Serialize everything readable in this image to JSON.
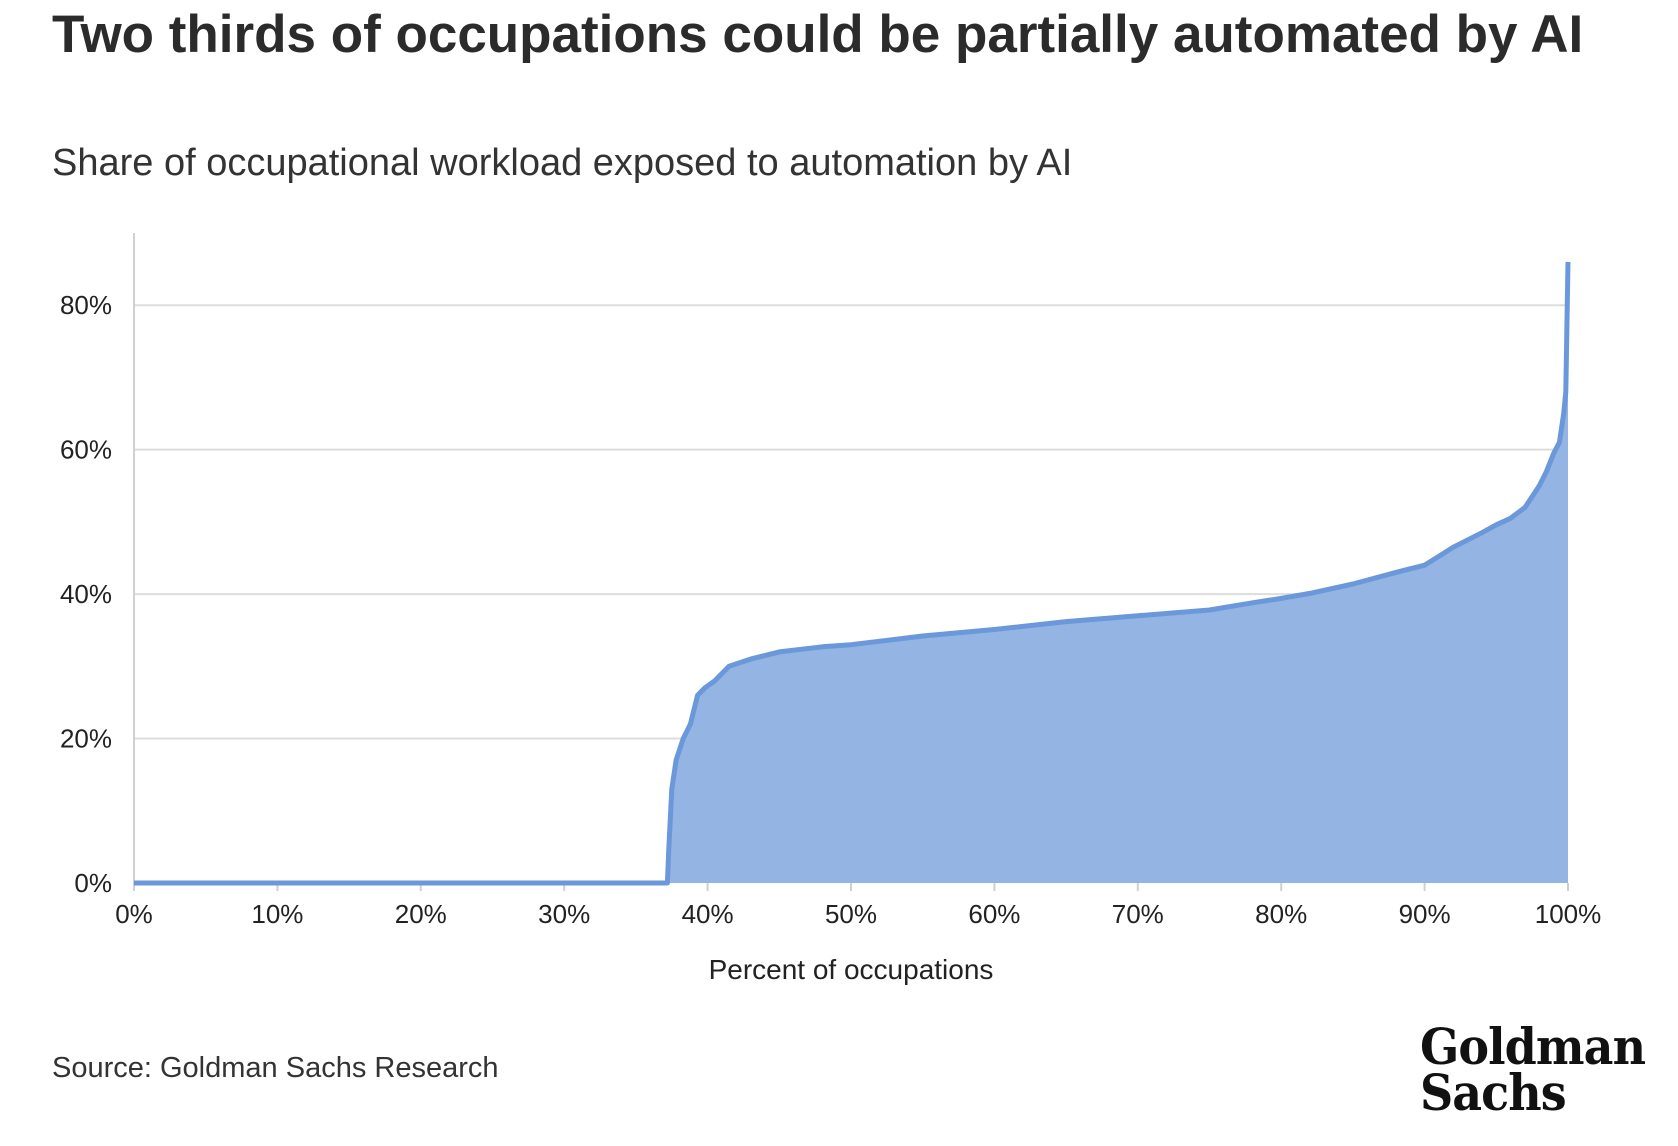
{
  "title": "Two thirds of occupations could be partially automated by AI",
  "subtitle": "Share of occupational workload exposed to automation by AI",
  "source": "Source: Goldman Sachs Research",
  "logo": {
    "line1": "Goldman",
    "line2": "Sachs"
  },
  "colors": {
    "fill": "#94b4e3",
    "line": "#6a98da",
    "grid": "#dddddd",
    "axis": "#d0d0d0"
  },
  "chart_data": {
    "type": "area",
    "title": "Two thirds of occupations could be partially automated by AI",
    "subtitle": "Share of occupational workload exposed to automation by AI",
    "xlabel": "Percent of occupations",
    "ylabel": "",
    "xlim": [
      0,
      100
    ],
    "ylim": [
      0,
      90
    ],
    "x_ticks": [
      "0%",
      "10%",
      "20%",
      "30%",
      "40%",
      "50%",
      "60%",
      "70%",
      "80%",
      "90%",
      "100%"
    ],
    "y_ticks": [
      "0%",
      "20%",
      "40%",
      "60%",
      "80%"
    ],
    "y_tick_values": [
      0,
      20,
      40,
      60,
      80
    ],
    "grid": true,
    "legend": "none",
    "series": [
      {
        "x": [
          0,
          37.2,
          37.3,
          37.5,
          37.8,
          38.3,
          38.8,
          39.3,
          39.8,
          40.5,
          41.5,
          43,
          45,
          48,
          50,
          55,
          60,
          65,
          70,
          75,
          78,
          80,
          82,
          85,
          88,
          90,
          92,
          94,
          95,
          96,
          97,
          98,
          98.5,
          99,
          99.4,
          99.7,
          99.85,
          100
        ],
        "y": [
          0,
          0,
          5,
          13,
          17,
          20,
          22,
          26,
          27,
          28,
          30,
          31,
          32,
          32.7,
          33,
          34.2,
          35.1,
          36.2,
          37,
          37.8,
          38.8,
          39.4,
          40.1,
          41.4,
          43,
          44,
          46.5,
          48.5,
          49.6,
          50.5,
          52,
          55,
          57,
          59.5,
          61,
          65,
          68,
          86
        ]
      }
    ]
  }
}
